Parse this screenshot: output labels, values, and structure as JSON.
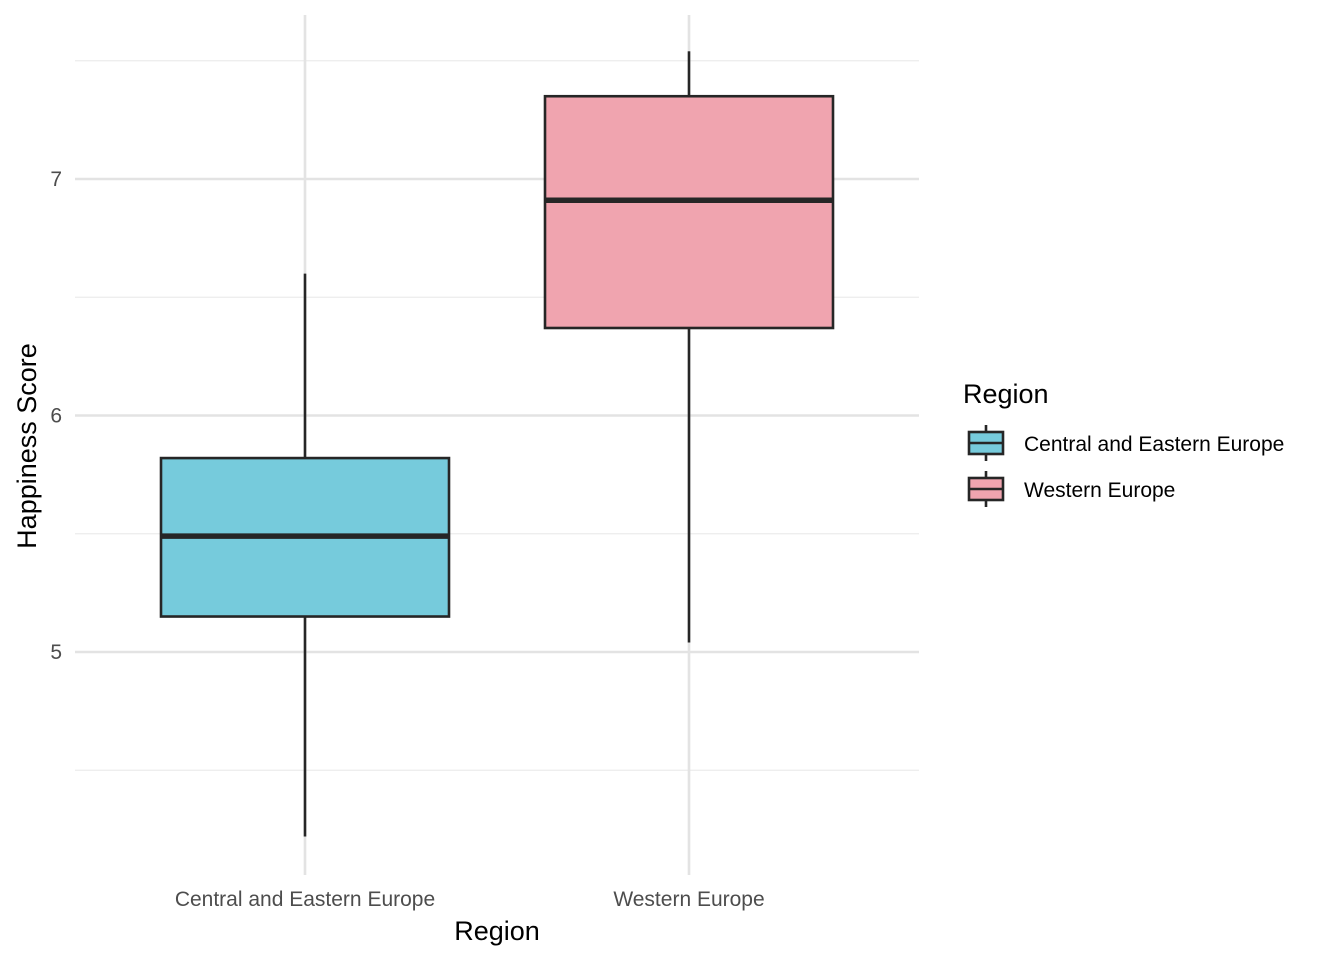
{
  "chart_data": {
    "type": "box",
    "xlabel": "Region",
    "ylabel": "Happiness Score",
    "ylim": [
      4.2,
      7.7
    ],
    "y_ticks": [
      5,
      6,
      7
    ],
    "y_minor_ticks": [
      4.5,
      5.5,
      6.5,
      7.5
    ],
    "categories": [
      "Central and Eastern Europe",
      "Western Europe"
    ],
    "series": [
      {
        "name": "Central and Eastern Europe",
        "color": "#76CBDC",
        "min": 4.22,
        "q1": 5.15,
        "median": 5.49,
        "q3": 5.82,
        "max": 6.6
      },
      {
        "name": "Western Europe",
        "color": "#F0A4AF",
        "min": 5.04,
        "q1": 6.37,
        "median": 6.91,
        "q3": 7.35,
        "max": 7.54
      }
    ],
    "grid": true,
    "legend": {
      "title": "Region",
      "position": "right",
      "entries": [
        "Central and Eastern Europe",
        "Western Europe"
      ]
    }
  }
}
